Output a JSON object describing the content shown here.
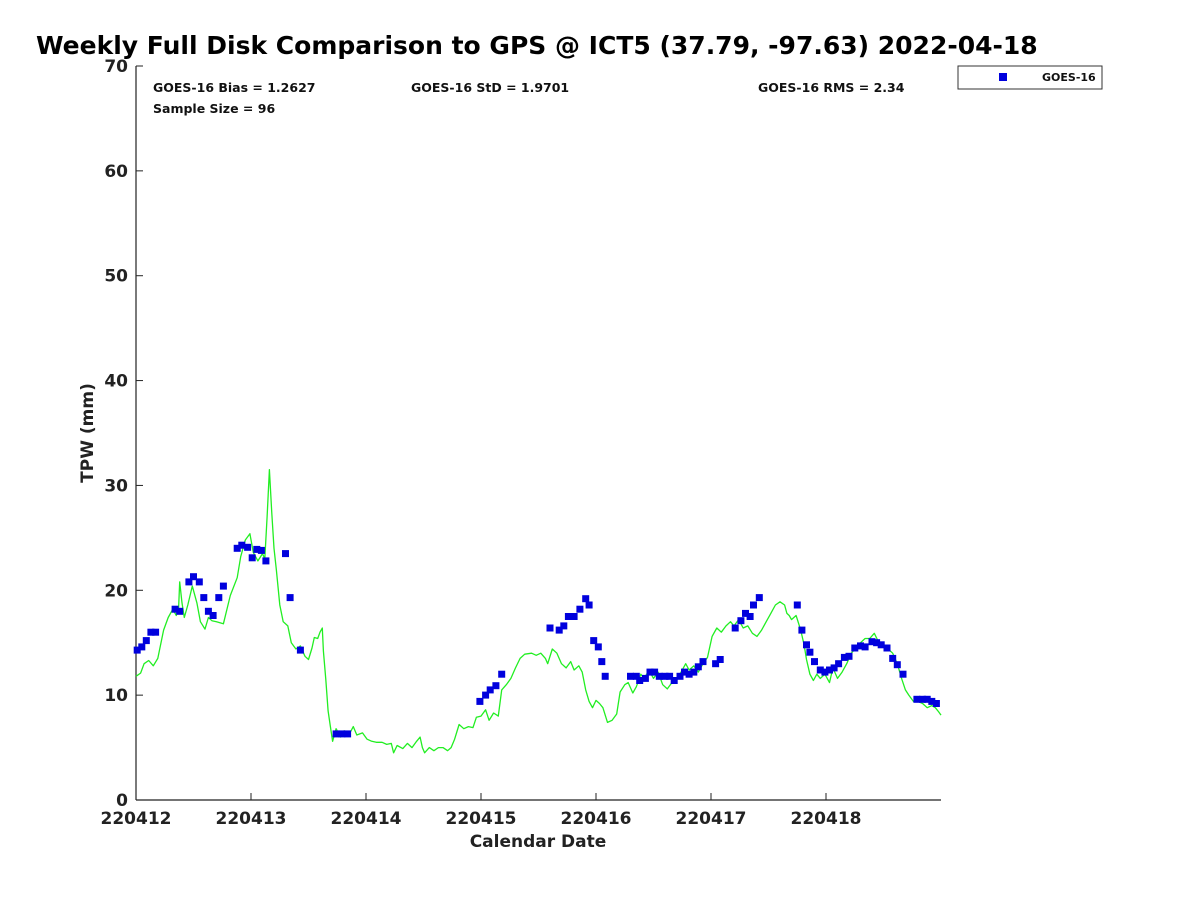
{
  "chart_data": {
    "type": "scatter",
    "title": "Weekly Full Disk Comparison to GPS @ ICT5 (37.79, -97.63) 2022-04-18",
    "xlabel": "Calendar Date",
    "ylabel": "TPW (mm)",
    "xlim": [
      0,
      7
    ],
    "ylim": [
      0,
      70
    ],
    "x_ticks": [
      0,
      1,
      2,
      3,
      4,
      5,
      6
    ],
    "x_tick_labels": [
      "220412",
      "220413",
      "220414",
      "220415",
      "220416",
      "220417",
      "220418"
    ],
    "y_ticks": [
      0,
      10,
      20,
      30,
      40,
      50,
      60,
      70
    ],
    "y_tick_labels": [
      "0",
      "10",
      "20",
      "30",
      "40",
      "50",
      "60",
      "70"
    ],
    "grid": false,
    "legend": {
      "placement": "top-right",
      "entries": [
        "GOES-16"
      ]
    },
    "stats": {
      "bias": "GOES-16 Bias = 1.2627",
      "sample_size": "Sample Size = 96",
      "std": "GOES-16 StD = 1.9701",
      "rms": "GOES-16 RMS = 2.34"
    },
    "series": [
      {
        "name": "GOES-16",
        "kind": "scatter",
        "color": "#0000dd",
        "points": [
          [
            0.01,
            14.3
          ],
          [
            0.05,
            14.6
          ],
          [
            0.09,
            15.2
          ],
          [
            0.13,
            16.0
          ],
          [
            0.17,
            16.0
          ],
          [
            0.34,
            18.2
          ],
          [
            0.38,
            18.0
          ],
          [
            0.46,
            20.8
          ],
          [
            0.5,
            21.3
          ],
          [
            0.55,
            20.8
          ],
          [
            0.59,
            19.3
          ],
          [
            0.63,
            18.0
          ],
          [
            0.67,
            17.6
          ],
          [
            0.72,
            19.3
          ],
          [
            0.76,
            20.4
          ],
          [
            0.88,
            24.0
          ],
          [
            0.92,
            24.3
          ],
          [
            0.97,
            24.1
          ],
          [
            1.01,
            23.1
          ],
          [
            1.05,
            23.9
          ],
          [
            1.09,
            23.8
          ],
          [
            1.13,
            22.8
          ],
          [
            1.3,
            23.5
          ],
          [
            1.34,
            19.3
          ],
          [
            1.43,
            14.3
          ],
          [
            1.74,
            6.3
          ],
          [
            1.79,
            6.3
          ],
          [
            1.84,
            6.3
          ],
          [
            2.99,
            9.4
          ],
          [
            3.04,
            10.0
          ],
          [
            3.08,
            10.5
          ],
          [
            3.13,
            10.9
          ],
          [
            3.18,
            12.0
          ],
          [
            3.6,
            16.4
          ],
          [
            3.68,
            16.2
          ],
          [
            3.72,
            16.6
          ],
          [
            3.76,
            17.5
          ],
          [
            3.81,
            17.5
          ],
          [
            3.86,
            18.2
          ],
          [
            3.91,
            19.2
          ],
          [
            3.94,
            18.6
          ],
          [
            3.98,
            15.2
          ],
          [
            4.02,
            14.6
          ],
          [
            4.05,
            13.2
          ],
          [
            4.08,
            11.8
          ],
          [
            4.3,
            11.8
          ],
          [
            4.35,
            11.8
          ],
          [
            4.38,
            11.4
          ],
          [
            4.43,
            11.6
          ],
          [
            4.47,
            12.2
          ],
          [
            4.51,
            12.2
          ],
          [
            4.55,
            11.8
          ],
          [
            4.6,
            11.8
          ],
          [
            4.64,
            11.8
          ],
          [
            4.68,
            11.4
          ],
          [
            4.73,
            11.8
          ],
          [
            4.77,
            12.2
          ],
          [
            4.81,
            12.0
          ],
          [
            4.85,
            12.2
          ],
          [
            4.89,
            12.7
          ],
          [
            4.93,
            13.2
          ],
          [
            5.04,
            13.0
          ],
          [
            5.08,
            13.4
          ],
          [
            5.21,
            16.4
          ],
          [
            5.26,
            17.1
          ],
          [
            5.3,
            17.8
          ],
          [
            5.34,
            17.5
          ],
          [
            5.37,
            18.6
          ],
          [
            5.42,
            19.3
          ],
          [
            5.75,
            18.6
          ],
          [
            5.79,
            16.2
          ],
          [
            5.83,
            14.8
          ],
          [
            5.86,
            14.1
          ],
          [
            5.9,
            13.2
          ],
          [
            5.95,
            12.4
          ],
          [
            5.99,
            12.2
          ],
          [
            6.03,
            12.4
          ],
          [
            6.07,
            12.6
          ],
          [
            6.11,
            13.0
          ],
          [
            6.16,
            13.6
          ],
          [
            6.2,
            13.7
          ],
          [
            6.25,
            14.5
          ],
          [
            6.3,
            14.7
          ],
          [
            6.34,
            14.6
          ],
          [
            6.4,
            15.1
          ],
          [
            6.44,
            15.0
          ],
          [
            6.48,
            14.8
          ],
          [
            6.53,
            14.5
          ],
          [
            6.58,
            13.5
          ],
          [
            6.62,
            12.9
          ],
          [
            6.67,
            12.0
          ],
          [
            6.79,
            9.6
          ],
          [
            6.84,
            9.6
          ],
          [
            6.88,
            9.6
          ],
          [
            6.92,
            9.4
          ],
          [
            6.96,
            9.2
          ]
        ]
      },
      {
        "name": "GPS",
        "kind": "line",
        "color": "#22ee22",
        "points": [
          [
            0.0,
            11.8
          ],
          [
            0.04,
            12.1
          ],
          [
            0.07,
            13.0
          ],
          [
            0.11,
            13.3
          ],
          [
            0.15,
            12.8
          ],
          [
            0.19,
            13.5
          ],
          [
            0.24,
            16.2
          ],
          [
            0.28,
            17.4
          ],
          [
            0.32,
            18.2
          ],
          [
            0.35,
            17.6
          ],
          [
            0.37,
            18.3
          ],
          [
            0.38,
            20.8
          ],
          [
            0.4,
            18.8
          ],
          [
            0.42,
            17.4
          ],
          [
            0.45,
            18.6
          ],
          [
            0.49,
            20.4
          ],
          [
            0.53,
            18.8
          ],
          [
            0.56,
            17.0
          ],
          [
            0.6,
            16.3
          ],
          [
            0.63,
            17.4
          ],
          [
            0.66,
            17.1
          ],
          [
            0.7,
            17.0
          ],
          [
            0.76,
            16.8
          ],
          [
            0.82,
            19.5
          ],
          [
            0.88,
            21.2
          ],
          [
            0.91,
            23.2
          ],
          [
            0.95,
            24.8
          ],
          [
            0.99,
            25.4
          ],
          [
            1.02,
            23.6
          ],
          [
            1.06,
            22.8
          ],
          [
            1.1,
            23.5
          ],
          [
            1.12,
            23.0
          ],
          [
            1.14,
            27.0
          ],
          [
            1.16,
            31.5
          ],
          [
            1.18,
            27.5
          ],
          [
            1.2,
            24.0
          ],
          [
            1.22,
            22.0
          ],
          [
            1.25,
            18.6
          ],
          [
            1.28,
            17.0
          ],
          [
            1.32,
            16.6
          ],
          [
            1.35,
            15.0
          ],
          [
            1.39,
            14.4
          ],
          [
            1.43,
            14.7
          ],
          [
            1.47,
            13.7
          ],
          [
            1.5,
            13.4
          ],
          [
            1.53,
            14.5
          ],
          [
            1.55,
            15.5
          ],
          [
            1.58,
            15.4
          ],
          [
            1.6,
            16.0
          ],
          [
            1.62,
            16.4
          ],
          [
            1.63,
            14.2
          ],
          [
            1.65,
            11.5
          ],
          [
            1.67,
            8.5
          ],
          [
            1.69,
            7.0
          ],
          [
            1.71,
            5.6
          ],
          [
            1.74,
            6.8
          ],
          [
            1.78,
            6.0
          ],
          [
            1.81,
            6.6
          ],
          [
            1.85,
            6.2
          ],
          [
            1.89,
            7.0
          ],
          [
            1.92,
            6.2
          ],
          [
            1.97,
            6.4
          ],
          [
            2.01,
            5.8
          ],
          [
            2.05,
            5.6
          ],
          [
            2.09,
            5.5
          ],
          [
            2.14,
            5.5
          ],
          [
            2.18,
            5.3
          ],
          [
            2.22,
            5.4
          ],
          [
            2.24,
            4.5
          ],
          [
            2.27,
            5.2
          ],
          [
            2.32,
            4.9
          ],
          [
            2.36,
            5.4
          ],
          [
            2.4,
            5.0
          ],
          [
            2.44,
            5.6
          ],
          [
            2.47,
            6.0
          ],
          [
            2.49,
            5.0
          ],
          [
            2.51,
            4.5
          ],
          [
            2.55,
            5.0
          ],
          [
            2.59,
            4.7
          ],
          [
            2.63,
            5.0
          ],
          [
            2.67,
            5.0
          ],
          [
            2.71,
            4.7
          ],
          [
            2.74,
            5.0
          ],
          [
            2.77,
            5.8
          ],
          [
            2.81,
            7.2
          ],
          [
            2.85,
            6.8
          ],
          [
            2.89,
            7.0
          ],
          [
            2.93,
            6.9
          ],
          [
            2.96,
            7.9
          ],
          [
            3.0,
            8.0
          ],
          [
            3.04,
            8.6
          ],
          [
            3.07,
            7.6
          ],
          [
            3.11,
            8.3
          ],
          [
            3.15,
            8.0
          ],
          [
            3.18,
            10.5
          ],
          [
            3.22,
            11.0
          ],
          [
            3.26,
            11.6
          ],
          [
            3.3,
            12.6
          ],
          [
            3.34,
            13.5
          ],
          [
            3.38,
            13.9
          ],
          [
            3.44,
            14.0
          ],
          [
            3.48,
            13.8
          ],
          [
            3.52,
            14.0
          ],
          [
            3.56,
            13.5
          ],
          [
            3.58,
            13.0
          ],
          [
            3.62,
            14.4
          ],
          [
            3.66,
            14.0
          ],
          [
            3.7,
            13.0
          ],
          [
            3.74,
            12.6
          ],
          [
            3.78,
            13.2
          ],
          [
            3.81,
            12.4
          ],
          [
            3.85,
            12.8
          ],
          [
            3.88,
            12.2
          ],
          [
            3.91,
            10.5
          ],
          [
            3.94,
            9.4
          ],
          [
            3.97,
            8.8
          ],
          [
            4.0,
            9.5
          ],
          [
            4.03,
            9.2
          ],
          [
            4.06,
            8.8
          ],
          [
            4.1,
            7.4
          ],
          [
            4.14,
            7.6
          ],
          [
            4.18,
            8.2
          ],
          [
            4.21,
            10.3
          ],
          [
            4.25,
            11.0
          ],
          [
            4.28,
            11.2
          ],
          [
            4.32,
            10.2
          ],
          [
            4.35,
            10.8
          ],
          [
            4.39,
            12.0
          ],
          [
            4.42,
            11.6
          ],
          [
            4.46,
            12.4
          ],
          [
            4.5,
            11.6
          ],
          [
            4.54,
            12.2
          ],
          [
            4.58,
            11.0
          ],
          [
            4.62,
            10.6
          ],
          [
            4.66,
            11.2
          ],
          [
            4.7,
            11.6
          ],
          [
            4.74,
            12.2
          ],
          [
            4.78,
            13.0
          ],
          [
            4.81,
            12.4
          ],
          [
            4.85,
            12.8
          ],
          [
            4.89,
            12.2
          ],
          [
            4.93,
            13.0
          ],
          [
            4.97,
            13.6
          ],
          [
            5.01,
            15.6
          ],
          [
            5.05,
            16.4
          ],
          [
            5.09,
            16.0
          ],
          [
            5.13,
            16.6
          ],
          [
            5.17,
            17.0
          ],
          [
            5.2,
            16.6
          ],
          [
            5.24,
            17.2
          ],
          [
            5.28,
            16.4
          ],
          [
            5.32,
            16.6
          ],
          [
            5.36,
            15.9
          ],
          [
            5.4,
            15.6
          ],
          [
            5.44,
            16.2
          ],
          [
            5.48,
            17.0
          ],
          [
            5.52,
            17.8
          ],
          [
            5.56,
            18.6
          ],
          [
            5.6,
            18.9
          ],
          [
            5.64,
            18.6
          ],
          [
            5.66,
            17.8
          ],
          [
            5.68,
            17.6
          ],
          [
            5.7,
            17.2
          ],
          [
            5.74,
            17.6
          ],
          [
            5.78,
            16.2
          ],
          [
            5.81,
            14.8
          ],
          [
            5.83,
            13.4
          ],
          [
            5.86,
            12.0
          ],
          [
            5.89,
            11.4
          ],
          [
            5.92,
            12.0
          ],
          [
            5.95,
            11.6
          ],
          [
            5.99,
            12.0
          ],
          [
            6.03,
            11.2
          ],
          [
            6.06,
            12.6
          ],
          [
            6.1,
            11.6
          ],
          [
            6.14,
            12.2
          ],
          [
            6.18,
            13.0
          ],
          [
            6.22,
            14.0
          ],
          [
            6.26,
            14.5
          ],
          [
            6.3,
            15.0
          ],
          [
            6.34,
            15.4
          ],
          [
            6.38,
            15.4
          ],
          [
            6.42,
            15.9
          ],
          [
            6.46,
            15.0
          ],
          [
            6.5,
            14.6
          ],
          [
            6.54,
            14.4
          ],
          [
            6.58,
            14.0
          ],
          [
            6.62,
            13.0
          ],
          [
            6.66,
            11.5
          ],
          [
            6.69,
            10.5
          ],
          [
            6.72,
            10.0
          ],
          [
            6.76,
            9.4
          ],
          [
            6.8,
            9.4
          ],
          [
            6.84,
            9.2
          ],
          [
            6.88,
            8.8
          ],
          [
            6.92,
            9.0
          ],
          [
            6.95,
            8.8
          ],
          [
            6.98,
            8.4
          ],
          [
            7.0,
            8.1
          ]
        ]
      }
    ]
  }
}
